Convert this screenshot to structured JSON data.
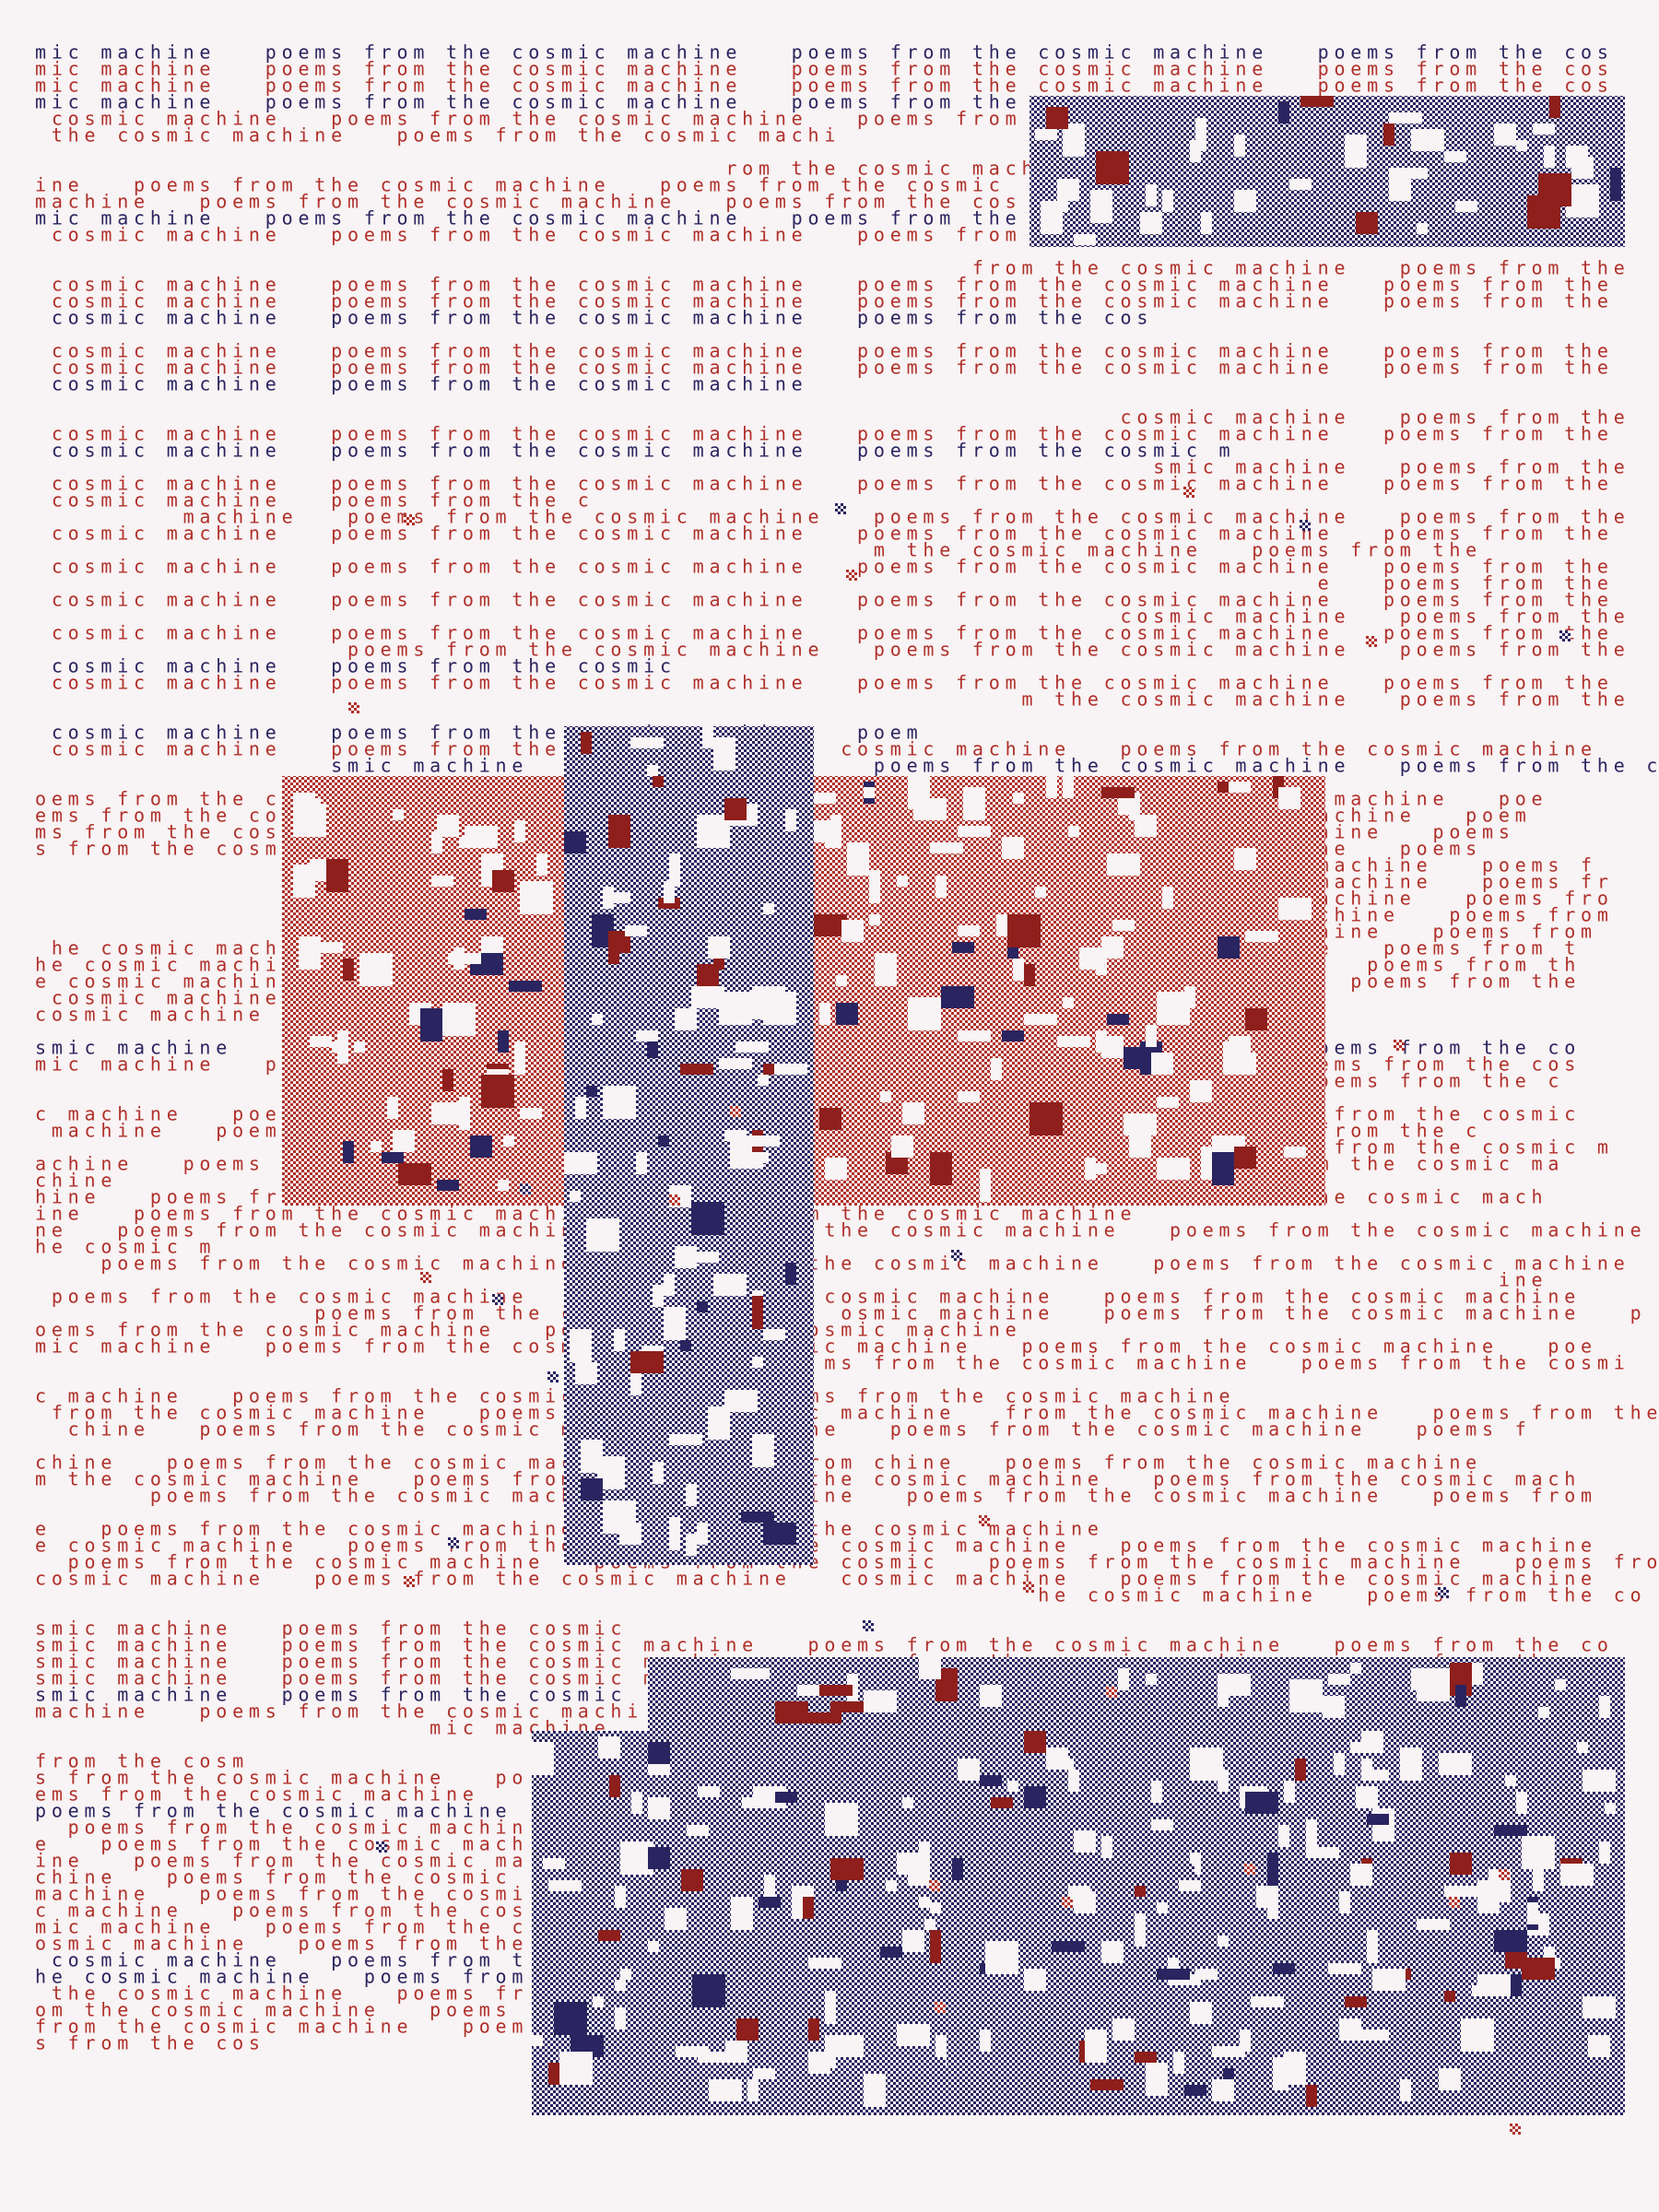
{
  "groups": [
    {
      "lines": [
        {
          "text": "mic machine   poems from the cosmic machine   poems from the cosmic machine   poems from the cos",
          "color": "#2a2460"
        },
        {
          "text": "mic machine   poems from the cosmic machine   poems from the cosmic machine   poems from the cos",
          "color": "#b0302a"
        },
        {
          "text": "mic machine   poems from the cosmic machine   poems from the cosmic machine   poems from the cos",
          "color": "#b0302a"
        },
        {
          "text": "mic machine   poems from the cosmic machine   poems from the",
          "color": "#2a2460"
        },
        {
          "text": " cosmic machine   poems from the cosmic machine   poems from",
          "color": "#b0302a"
        },
        {
          "text": " the cosmic machine   poems from the cosmic machi",
          "color": "#b0302a"
        }
      ]
    },
    {
      "lines": [
        {
          "text": "                                          rom the cosmic mach",
          "color": "#b0302a"
        },
        {
          "text": "ine   poems from the cosmic machine   poems from the cosmic",
          "color": "#b0302a"
        },
        {
          "text": "machine   poems from the cosmic machine   poems from the cos",
          "color": "#b0302a"
        },
        {
          "text": "mic machine   poems from the cosmic machine   poems from the",
          "color": "#2a2460"
        },
        {
          "text": " cosmic machine   poems from the cosmic machine   poems from the cosmic",
          "color": "#b0302a"
        }
      ]
    },
    {
      "lines": [
        {
          "text": "                                                         from the cosmic machine   poems from the",
          "color": "#b0302a"
        },
        {
          "text": " cosmic machine   poems from the cosmic machine   poems from the cosmic machine   poems from the",
          "color": "#b0302a"
        },
        {
          "text": " cosmic machine   poems from the cosmic machine   poems from the cosmic machine   poems from the",
          "color": "#b0302a"
        },
        {
          "text": " cosmic machine   poems from the cosmic machine   poems from the cos",
          "color": "#2a2460"
        }
      ]
    },
    {
      "lines": [
        {
          "text": " cosmic machine   poems from the cosmic machine   poems from the cosmic machine   poems from the",
          "color": "#b0302a"
        },
        {
          "text": " cosmic machine   poems from the cosmic machine   poems from the cosmic machine   poems from the",
          "color": "#b0302a"
        },
        {
          "text": " cosmic machine   poems from the cosmic machine",
          "color": "#2a2460"
        }
      ]
    },
    {
      "lines": [
        {
          "text": "                                                                  cosmic machine   poems from the",
          "color": "#b0302a"
        },
        {
          "text": " cosmic machine   poems from the cosmic machine   poems from the cosmic machine   poems from the",
          "color": "#b0302a"
        },
        {
          "text": " cosmic machine   poems from the cosmic machine   poems from the cosmic m",
          "color": "#2a2460"
        },
        {
          "text": "                                                                    smic machine   poems from the",
          "color": "#b0302a"
        },
        {
          "text": " cosmic machine   poems from the cosmic machine   poems from the cosmic machine   poems from the",
          "color": "#b0302a"
        },
        {
          "text": " cosmic machine   poems from the c",
          "color": "#b0302a"
        },
        {
          "text": "         machine   poems from the cosmic machine   poems from the cosmic machine   poems from the",
          "color": "#b0302a"
        },
        {
          "text": " cosmic machine   poems from the cosmic machine   poems from the cosmic machine   poems from the",
          "color": "#b0302a"
        },
        {
          "text": "                                                   m the cosmic machine   poems from the",
          "color": "#b0302a"
        },
        {
          "text": " cosmic machine   poems from the cosmic machine   poems from the cosmic machine   poems from the",
          "color": "#b0302a"
        },
        {
          "text": "                                                                              e   poems from the",
          "color": "#b0302a"
        },
        {
          "text": " cosmic machine   poems from the cosmic machine   poems from the cosmic machine   poems from the",
          "color": "#b0302a"
        },
        {
          "text": "                                                                  cosmic machine   poems from the",
          "color": "#b0302a"
        },
        {
          "text": " cosmic machine   poems from the cosmic machine   poems from the cosmic machine   poems from the",
          "color": "#b0302a"
        },
        {
          "text": "                   poems from the cosmic machine   poems from the cosmic machine   poems from the",
          "color": "#b0302a"
        },
        {
          "text": " cosmic machine   poems from the cosmic",
          "color": "#2a2460"
        },
        {
          "text": " cosmic machine   poems from the cosmic machine   poems from the cosmic machine   poems from the",
          "color": "#b0302a"
        },
        {
          "text": "                                                            m the cosmic machine   poems from the",
          "color": "#b0302a"
        }
      ]
    },
    {
      "lines": [
        {
          "text": " cosmic machine   poems from the cosmic machine   poem",
          "color": "#2a2460"
        },
        {
          "text": " cosmic machine   poems from the                 cosmic machine   poems from the cosmic machine",
          "color": "#b0302a"
        },
        {
          "text": "                  smic machine                     poems from the cosmic machine   poems from the c",
          "color": "#2a2460"
        }
      ]
    },
    {
      "lines": [
        {
          "text": "oems from the cosmic machine   poems from the cosmic machine   poems from smic machine   poe",
          "color": "#b0302a"
        },
        {
          "text": "ems from the cosmic machine   poems from the cosmic machine   poems from mic machine   poem",
          "color": "#b0302a"
        },
        {
          "text": "ms from the cosmic machine   poems from the cosmic machine   poems from ic machine   poems",
          "color": "#b0302a"
        },
        {
          "text": "s from the cosmic machine   poems from the cosmic machine   poems from c machine   poems",
          "color": "#b0302a"
        },
        {
          "text": "                                                                              machine   poems f",
          "color": "#b0302a"
        },
        {
          "text": "                                                                              machine   poems fr",
          "color": "#b0302a"
        },
        {
          "text": "                                                                              achine   poems fro",
          "color": "#b0302a"
        },
        {
          "text": "                                                                              chine   poems from",
          "color": "#b0302a"
        },
        {
          "text": "                                                                              hine   poems from",
          "color": "#b0302a"
        },
        {
          "text": " he cosmic machine   poems from the cosmic machine   poems from the cosmic  ine   poems from t",
          "color": "#b0302a"
        },
        {
          "text": "he cosmic machine   poems from the cosmic machine   poems from the cosmic   ne   poems from th",
          "color": "#b0302a"
        },
        {
          "text": "e cosmic machine   poems from the cosmic machine   poems from the cosmic    e   poems from the",
          "color": "#b0302a"
        },
        {
          "text": " cosmic machine   poems from the cosmic machine   poems from the cosmic",
          "color": "#b0302a"
        },
        {
          "text": "cosmic machine   poems from the cosmic machine   poems from the cosmic",
          "color": "#b0302a"
        }
      ]
    },
    {
      "lines": [
        {
          "text": "smic machine   poems from the cosmic machine   poems from the cosmic machi   poems from the co",
          "color": "#2a2460"
        },
        {
          "text": "mic machine   poems from the cosmic machine   poems from the cosmic mach    poems from the cos",
          "color": "#b0302a"
        },
        {
          "text": "                                                                              oems from the c",
          "color": "#b0302a"
        }
      ]
    },
    {
      "lines": [
        {
          "text": "c machine   poems from the cosmic machine   poems from the cosmic machine   ms from the cosmic",
          "color": "#b0302a"
        },
        {
          "text": " machine   poems from the cosmic machine   poems from the cosmic machine    s from the c",
          "color": "#b0302a"
        },
        {
          "text": "                                                                               from the cosmic m",
          "color": "#b0302a"
        },
        {
          "text": "achine   poems from the cosmic machine   poems from the cosmic machine     from the cosmic ma",
          "color": "#b0302a"
        },
        {
          "text": "chine",
          "color": "#b0302a"
        },
        {
          "text": "hine   poems from the cosmic machine   poems from the cosmic machine      om the cosmic mach",
          "color": "#b0302a"
        },
        {
          "text": "ine   poems from the cosmic machine   poems from the cosmic machine",
          "color": "#b0302a"
        },
        {
          "text": "ne   poems from the cosmic machine   poems from the cosmic machine   poems from the cosmic machine",
          "color": "#b0302a"
        },
        {
          "text": "he cosmic m",
          "color": "#b0302a"
        },
        {
          "text": "    poems from the cosmic machine   poems from the cosmic machine   poems from the cosmic machine",
          "color": "#b0302a"
        },
        {
          "text": "                                                                                         ine",
          "color": "#b0302a"
        },
        {
          "text": " poems from the cosmic machine   poems from the cosmic machine   poems from the cosmic machine",
          "color": "#b0302a"
        },
        {
          "text": "                 poems from the cosmic machine   osmic machine   poems from the cosmic machine   p",
          "color": "#b0302a"
        },
        {
          "text": "oems from the cosmic machine   poems from the cosmic machine",
          "color": "#b0302a"
        },
        {
          "text": "mic machine   poems from the cosmic machine   mic machine   poems from the cosmic machine   poe",
          "color": "#b0302a"
        },
        {
          "text": "                                                ms from the cosmic machine   poems from the cosmi",
          "color": "#b0302a"
        }
      ]
    },
    {
      "lines": [
        {
          "text": "c machine   poems from the cosmic machine   poems from the cosmic machine",
          "color": "#b0302a"
        },
        {
          "text": " from the cosmic machine   poems from the cosmic machine   from the cosmic machine   poems from the cosmic",
          "color": "#b0302a"
        },
        {
          "text": "  chine   poems from the cosmic machine   machine   poems from the cosmic machine   poems f",
          "color": "#b0302a"
        }
      ]
    },
    {
      "lines": [
        {
          "text": "chine   poems from the cosmic machine   poems from chine   poems from the cosmic machine",
          "color": "#b0302a"
        },
        {
          "text": "m the cosmic machine   poems from the cosmic m the cosmic machine   poems from the cosmic mach",
          "color": "#b0302a"
        },
        {
          "text": "       poems from the cosmic machine   poems   ine   poems from the cosmic machine   poems from",
          "color": "#b0302a"
        }
      ]
    },
    {
      "lines": [
        {
          "text": "e   poems from the cosmic machine   poems from the cosmic machine",
          "color": "#b0302a"
        },
        {
          "text": "e cosmic machine   poems from the cosmic machi e cosmic machine   poems from the cosmic machine",
          "color": "#b0302a"
        },
        {
          "text": "  poems from the cosmic machine   poems from the cosmic   poems from the cosmic machine   poems from the",
          "color": "#b0302a"
        },
        {
          "text": "cosmic machine   poems from the cosmic machine   cosmic machine   poems from the cosmic machine",
          "color": "#b0302a"
        },
        {
          "text": "                                                             he cosmic machine   poems from the co",
          "color": "#b0302a"
        }
      ]
    },
    {
      "lines": [
        {
          "text": "smic machine   poems from the cosmic",
          "color": "#b0302a"
        },
        {
          "text": "smic machine   poems from the cosmic machine   poems from the cosmic machine   poems from the co",
          "color": "#b0302a"
        },
        {
          "text": "smic machine   poems from the cosmic machine   poems from the cosmic machine   poems from the co",
          "color": "#b0302a"
        },
        {
          "text": "smic machine   poems from the cosmic machine   poems from the cosmic machine   poems from the co",
          "color": "#b0302a"
        },
        {
          "text": "smic machine   poems from the cosmic",
          "color": "#2a2460"
        },
        {
          "text": "machine   poems from the cosmic machi",
          "color": "#b0302a"
        },
        {
          "text": "                        mic machine",
          "color": "#b0302a"
        }
      ]
    },
    {
      "lines": [
        {
          "text": "from the cosm",
          "color": "#b0302a"
        },
        {
          "text": "s from the cosmic machine   po",
          "color": "#b0302a"
        },
        {
          "text": "ems from the cosmic machine",
          "color": "#b0302a"
        },
        {
          "text": "poems from the cosmic machine",
          "color": "#2a2460"
        },
        {
          "text": "  poems from the cosmic machin",
          "color": "#b0302a"
        },
        {
          "text": "e   poems from the cosmic mach",
          "color": "#b0302a"
        },
        {
          "text": "ine   poems from the cosmic ma",
          "color": "#b0302a"
        },
        {
          "text": "chine   poems from the cosmic",
          "color": "#b0302a"
        },
        {
          "text": "machine   poems from the cosmi",
          "color": "#b0302a"
        },
        {
          "text": "c machine   poems from the cos",
          "color": "#b0302a"
        },
        {
          "text": "mic machine   poems from the c",
          "color": "#b0302a"
        },
        {
          "text": "osmic machine   poems from the",
          "color": "#b0302a"
        },
        {
          "text": " cosmic machine   poems from t",
          "color": "#2a2460"
        },
        {
          "text": "he cosmic machine   poems from",
          "color": "#2a2460"
        },
        {
          "text": " the cosmic machine   poems fr",
          "color": "#b0302a"
        },
        {
          "text": "om the cosmic machine   poems",
          "color": "#b0302a"
        },
        {
          "text": "from the cosmic machine   poem",
          "color": "#b0302a"
        },
        {
          "text": "s from the cos",
          "color": "#b0302a"
        }
      ]
    }
  ]
}
